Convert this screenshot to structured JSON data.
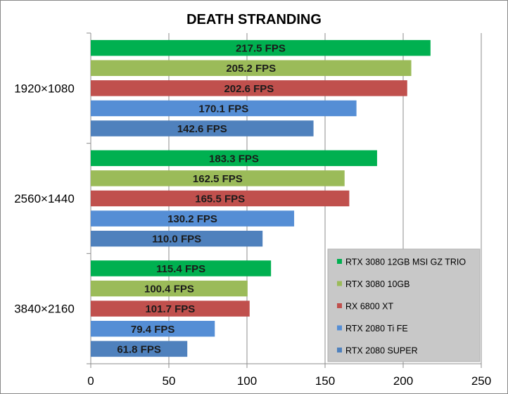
{
  "chart_data": {
    "type": "bar",
    "orientation": "horizontal",
    "title": "DEATH STRANDING",
    "categories": [
      "1920×1080",
      "2560×1440",
      "3840×2160"
    ],
    "series": [
      {
        "name": "RTX 3080 12GB MSI GZ TRIO",
        "color": "#00b050",
        "values": [
          217.5,
          183.3,
          115.4
        ],
        "labels": [
          "217.5 FPS",
          "183.3 FPS",
          "115.4 FPS"
        ]
      },
      {
        "name": "RTX 3080 10GB",
        "color": "#9bbb59",
        "values": [
          205.2,
          162.5,
          100.4
        ],
        "labels": [
          "205.2 FPS",
          "162.5 FPS",
          "100.4 FPS"
        ]
      },
      {
        "name": "RX 6800 XT",
        "color": "#c0504d",
        "values": [
          202.6,
          165.5,
          101.7
        ],
        "labels": [
          "202.6 FPS",
          "165.5 FPS",
          "101.7 FPS"
        ]
      },
      {
        "name": "RTX 2080 Ti FE",
        "color": "#558ed5",
        "values": [
          170.1,
          130.2,
          79.4
        ],
        "labels": [
          "170.1 FPS",
          "130.2 FPS",
          "79.4 FPS"
        ]
      },
      {
        "name": "RTX 2080 SUPER",
        "color": "#4f81bd",
        "values": [
          142.6,
          110.0,
          61.8
        ],
        "labels": [
          "142.6 FPS",
          "110.0 FPS",
          "61.8 FPS"
        ]
      }
    ],
    "xlim": [
      0,
      250
    ],
    "x_ticks": [
      "0",
      "50",
      "100",
      "150",
      "200",
      "250"
    ],
    "grid": true,
    "legend_position": "bottom-right",
    "legend_background": "#c8c8c8"
  }
}
